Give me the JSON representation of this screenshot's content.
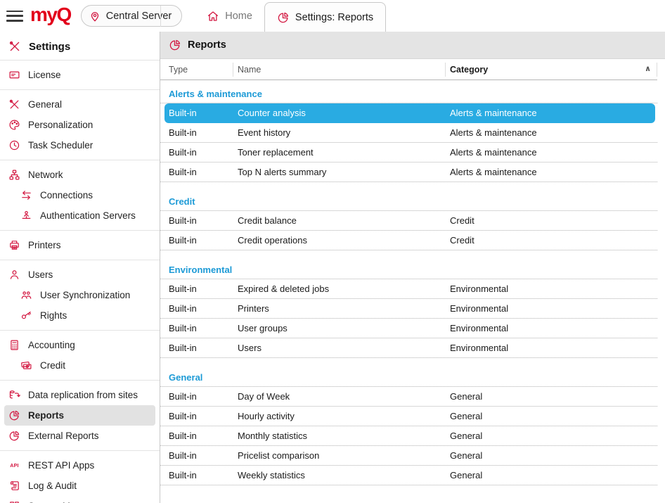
{
  "topbar": {
    "logo_text": "myQ",
    "server_button": {
      "label": "Central Server",
      "icon": "pin"
    },
    "tabs": [
      {
        "label": "Home",
        "icon": "home",
        "active": false
      },
      {
        "label": "Settings: Reports",
        "icon": "pie-chart",
        "active": true
      }
    ]
  },
  "sidebar": {
    "title": "Settings",
    "title_icon": "tools",
    "groups": [
      {
        "items": [
          {
            "label": "License",
            "icon": "license-card"
          }
        ]
      },
      {
        "items": [
          {
            "label": "General",
            "icon": "tools"
          },
          {
            "label": "Personalization",
            "icon": "palette"
          },
          {
            "label": "Task Scheduler",
            "icon": "clock"
          }
        ]
      },
      {
        "items": [
          {
            "label": "Network",
            "icon": "network-nodes"
          },
          {
            "label": "Connections",
            "icon": "sync-arrows",
            "indent": true
          },
          {
            "label": "Authentication Servers",
            "icon": "person-anchor",
            "indent": true
          }
        ]
      },
      {
        "items": [
          {
            "label": "Printers",
            "icon": "printer"
          }
        ]
      },
      {
        "items": [
          {
            "label": "Users",
            "icon": "person"
          },
          {
            "label": "User Synchronization",
            "icon": "people-group",
            "indent": true
          },
          {
            "label": "Rights",
            "icon": "key",
            "indent": true
          }
        ]
      },
      {
        "items": [
          {
            "label": "Accounting",
            "icon": "calculator"
          },
          {
            "label": "Credit",
            "icon": "banknotes",
            "indent": true
          }
        ]
      },
      {
        "items": [
          {
            "label": "Data replication from sites",
            "icon": "data-replication"
          },
          {
            "label": "Reports",
            "icon": "pie-chart",
            "selected": true
          },
          {
            "label": "External Reports",
            "icon": "pie-chart"
          }
        ]
      },
      {
        "items": [
          {
            "label": "REST API Apps",
            "icon": "api"
          },
          {
            "label": "Log & Audit",
            "icon": "scroll"
          },
          {
            "label": "System Management",
            "icon": "grid-squares"
          }
        ]
      }
    ]
  },
  "content": {
    "title": "Reports",
    "title_icon": "pie-chart",
    "table": {
      "columns": [
        {
          "label": "Type"
        },
        {
          "label": "Name"
        },
        {
          "label": "Category",
          "sorted": "asc"
        }
      ],
      "sort_indicator": "∧",
      "groups": [
        {
          "heading": "Alerts & maintenance",
          "rows": [
            {
              "type": "Built-in",
              "name": "Counter analysis",
              "category": "Alerts & maintenance",
              "selected": true
            },
            {
              "type": "Built-in",
              "name": "Event history",
              "category": "Alerts & maintenance"
            },
            {
              "type": "Built-in",
              "name": "Toner replacement",
              "category": "Alerts & maintenance"
            },
            {
              "type": "Built-in",
              "name": "Top N alerts summary",
              "category": "Alerts & maintenance"
            }
          ]
        },
        {
          "heading": "Credit",
          "rows": [
            {
              "type": "Built-in",
              "name": "Credit balance",
              "category": "Credit"
            },
            {
              "type": "Built-in",
              "name": "Credit operations",
              "category": "Credit"
            }
          ]
        },
        {
          "heading": "Environmental",
          "rows": [
            {
              "type": "Built-in",
              "name": "Expired & deleted jobs",
              "category": "Environmental"
            },
            {
              "type": "Built-in",
              "name": "Printers",
              "category": "Environmental"
            },
            {
              "type": "Built-in",
              "name": "User groups",
              "category": "Environmental"
            },
            {
              "type": "Built-in",
              "name": "Users",
              "category": "Environmental"
            }
          ]
        },
        {
          "heading": "General",
          "rows": [
            {
              "type": "Built-in",
              "name": "Day of Week",
              "category": "General"
            },
            {
              "type": "Built-in",
              "name": "Hourly activity",
              "category": "General"
            },
            {
              "type": "Built-in",
              "name": "Monthly statistics",
              "category": "General"
            },
            {
              "type": "Built-in",
              "name": "Pricelist comparison",
              "category": "General"
            },
            {
              "type": "Built-in",
              "name": "Weekly statistics",
              "category": "General"
            }
          ]
        }
      ]
    }
  },
  "colors": {
    "brand_red": "#e2001a",
    "icon_red": "#d2143e",
    "selection_blue": "#29abe2",
    "group_heading_blue": "#1c9ad6"
  }
}
